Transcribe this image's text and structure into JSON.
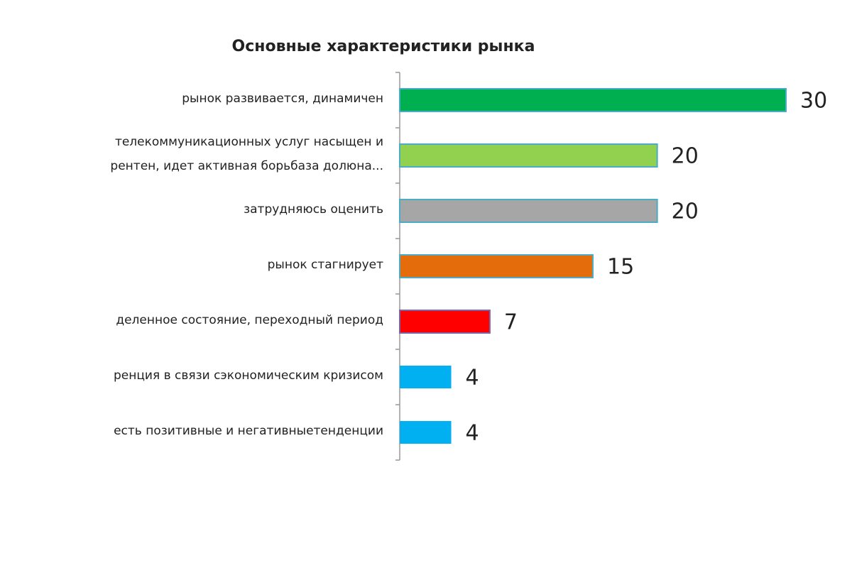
{
  "chart_data": {
    "type": "bar",
    "orientation": "horizontal",
    "title": "Основные  характеристики  рынка",
    "categories": [
      [
        "рынок развивается, динамичен"
      ],
      [
        "телекоммуникационных услуг насыщен и",
        "рентен,  идет активная  борьбаза долюна..."
      ],
      [
        "затрудняюсь оценить"
      ],
      [
        "рынок стагнирует"
      ],
      [
        "деленное состояние, переходный период"
      ],
      [
        "ренция в связи сэкономическим кризисом"
      ],
      [
        "есть позитивные и негативныетенденции"
      ]
    ],
    "values": [
      30,
      20,
      20,
      15,
      7,
      4,
      4
    ],
    "colors": [
      "#00b050",
      "#92d050",
      "#a6a6a6",
      "#e46c0a",
      "#ff0000",
      "#00b0f0",
      "#00b0f0"
    ],
    "xlim": [
      0,
      30
    ]
  }
}
